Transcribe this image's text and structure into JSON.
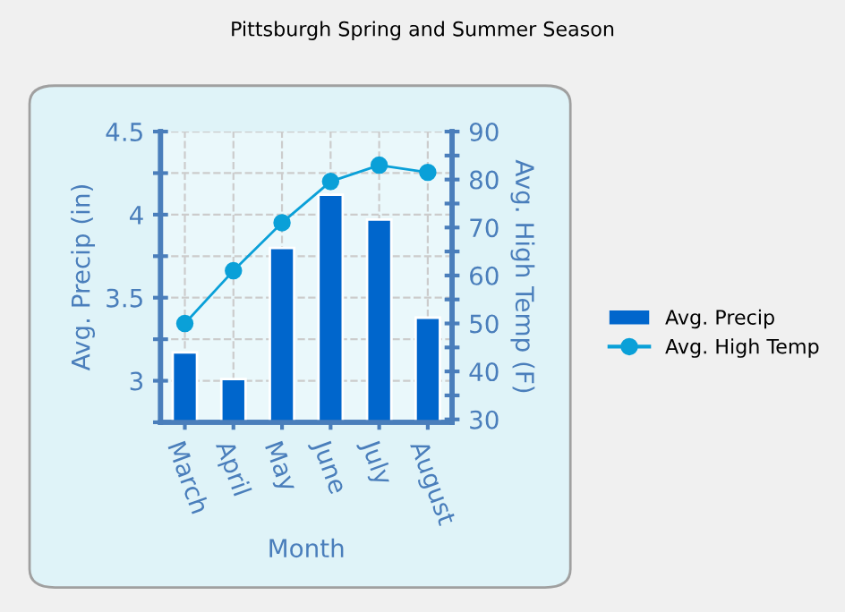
{
  "chart_data": {
    "type": "bar",
    "title": "Pittsburgh Spring and Summer Season",
    "xlabel": "Month",
    "ylabel": "Avg. Precip (in)",
    "y2label": "Avg. High Temp (F)",
    "categories": [
      "March",
      "April",
      "May",
      "June",
      "July",
      "August"
    ],
    "series": [
      {
        "name": "Avg. Precip",
        "color": "#0066cc",
        "values": [
          3.17,
          3.01,
          3.8,
          4.12,
          3.97,
          3.38
        ]
      },
      {
        "name": "Avg. High Temp",
        "type": "line",
        "axis": "y2",
        "color": "#0aa0d8",
        "marker": "circle",
        "values": [
          50,
          61,
          71,
          79.6,
          83,
          81.5
        ]
      }
    ],
    "ylim": [
      2.75,
      4.5
    ],
    "yticks": [
      {
        "value": 2.75,
        "label": null
      },
      3,
      {
        "value": 3.25,
        "label": null
      },
      3.5,
      {
        "value": 3.75,
        "label": null
      },
      4,
      {
        "value": 4.25,
        "label": null
      },
      4.5
    ],
    "y2lim": [
      29.4,
      90
    ],
    "y2ticks": [
      30,
      {
        "value": 35,
        "label": null
      },
      40,
      {
        "value": 45,
        "label": null
      },
      50,
      {
        "value": 55,
        "label": null
      },
      60,
      {
        "value": 65,
        "label": null
      },
      70,
      {
        "value": 75,
        "label": null
      },
      80,
      {
        "value": 85,
        "label": null
      },
      90
    ],
    "grid": true,
    "legend": "right"
  }
}
